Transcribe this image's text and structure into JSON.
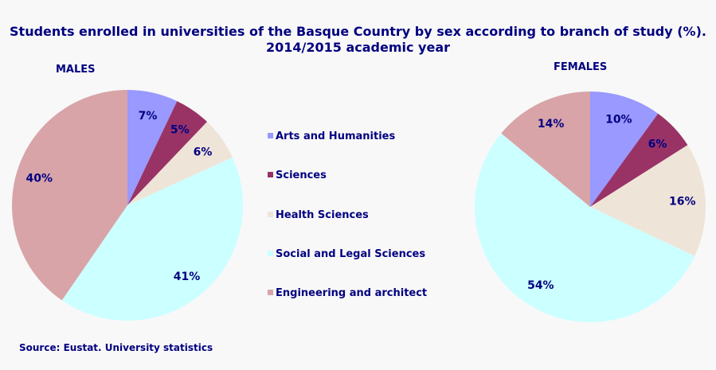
{
  "chart_data": [
    {
      "type": "pie",
      "title": "MALES",
      "categories": [
        "Arts and Humanities",
        "Sciences",
        "Health Sciences",
        "Social and Legal Sciences",
        "Engineering and architect"
      ],
      "values": [
        7,
        5,
        6,
        41,
        40
      ],
      "labels": [
        "7%",
        "5%",
        "6%",
        "41%",
        "40%"
      ]
    },
    {
      "type": "pie",
      "title": "FEMALES",
      "categories": [
        "Arts and Humanities",
        "Sciences",
        "Health Sciences",
        "Social and Legal Sciences",
        "Engineering and architect"
      ],
      "values": [
        10,
        6,
        16,
        54,
        14
      ],
      "labels": [
        "10%",
        "6%",
        "16%",
        "54%",
        "14%"
      ]
    }
  ],
  "title": "Students enrolled in universities of the Basque Country by sex according to branch of study (%). 2014/2015 academic year",
  "legend": [
    "Arts and Humanities",
    "Sciences",
    "Health Sciences",
    "Social and Legal Sciences",
    "Engineering and architect"
  ],
  "legend_placement": "center",
  "colors": [
    "#9999ff",
    "#993366",
    "#efe4d8",
    "#ccffff",
    "#d8a4a8"
  ],
  "source": "Source: Eustat. University statistics"
}
